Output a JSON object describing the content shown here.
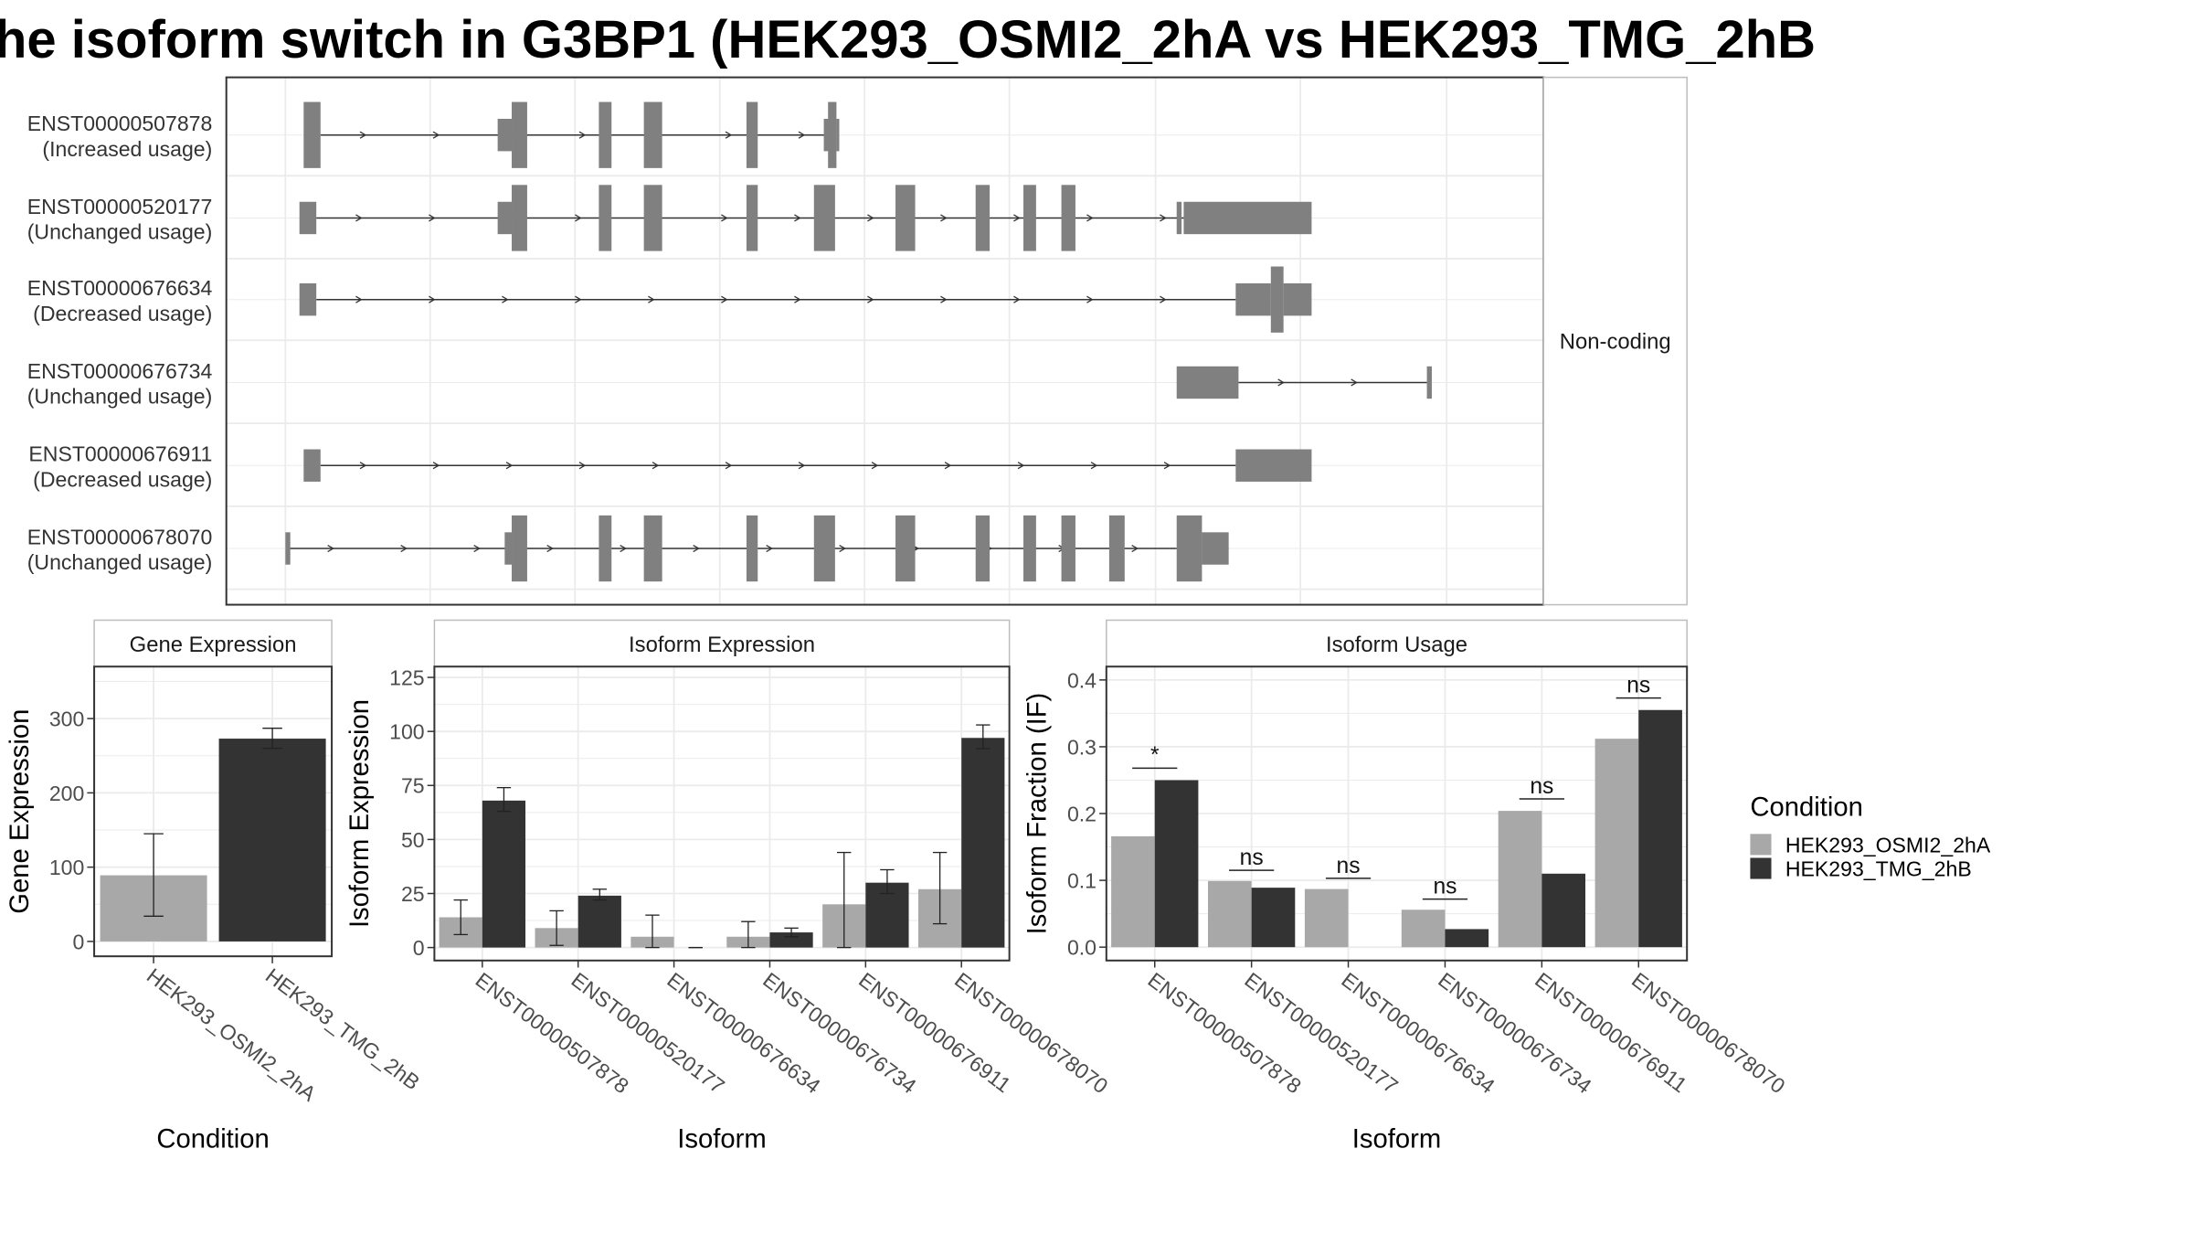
{
  "title": "he isoform switch in G3BP1 (HEK293_OSMI2_2hA vs HEK293_TMG_2hB",
  "colors": {
    "cond_a": "#a8a8a8",
    "cond_b": "#333333",
    "exon": "#808080",
    "grid": "#ebebeb",
    "panel_border": "#333333",
    "strip_border": "#bdbdbd"
  },
  "chart_data": [
    {
      "type": "gene-structure",
      "facet_label": "Non-coding",
      "transcripts": [
        {
          "id": "ENST00000507878",
          "usage": "(Increased usage)",
          "exons": [
            [
              25,
              37
            ],
            [
              173,
              184
            ],
            [
              235,
              244
            ],
            [
              267,
              280
            ],
            [
              340,
              348
            ],
            [
              398,
              404
            ]
          ],
          "utrs": [
            [
              163,
              173
            ],
            [
              404,
              406
            ]
          ],
          "ticks": [
            395
          ],
          "intron_from": 37,
          "intron_to": 398
        },
        {
          "id": "ENST00000520177",
          "usage": "(Unchanged usage)",
          "exons": [
            [
              173,
              184
            ],
            [
              235,
              244
            ],
            [
              267,
              280
            ],
            [
              340,
              348
            ],
            [
              388,
              403
            ],
            [
              446,
              460
            ],
            [
              503,
              513
            ],
            [
              537,
              546
            ],
            [
              564,
              574
            ]
          ],
          "utrs": [
            [
              22,
              34
            ],
            [
              163,
              173
            ],
            [
              651,
              742
            ]
          ],
          "ticks": [
            646
          ],
          "intron_from": 34,
          "intron_to": 651
        },
        {
          "id": "ENST00000676634",
          "usage": "(Decreased usage)",
          "exons": [
            [
              713,
              722
            ]
          ],
          "utrs": [
            [
              22,
              34
            ],
            [
              688,
              713
            ],
            [
              722,
              742
            ]
          ],
          "ticks": [],
          "intron_from": 34,
          "intron_to": 688
        },
        {
          "id": "ENST00000676734",
          "usage": "(Unchanged usage)",
          "exons": [],
          "utrs": [
            [
              646,
              690
            ]
          ],
          "ticks": [
            824
          ],
          "intron_from": 690,
          "intron_to": 824
        },
        {
          "id": "ENST00000676911",
          "usage": "(Decreased usage)",
          "exons": [],
          "utrs": [
            [
              25,
              37
            ],
            [
              688,
              742
            ]
          ],
          "ticks": [],
          "intron_from": 37,
          "intron_to": 688
        },
        {
          "id": "ENST00000678070",
          "usage": "(Unchanged usage)",
          "exons": [
            [
              173,
              184
            ],
            [
              235,
              244
            ],
            [
              267,
              280
            ],
            [
              340,
              348
            ],
            [
              388,
              403
            ],
            [
              446,
              460
            ],
            [
              503,
              513
            ],
            [
              537,
              546
            ],
            [
              564,
              574
            ],
            [
              598,
              609
            ],
            [
              646,
              664
            ]
          ],
          "utrs": [
            [
              168,
              173
            ],
            [
              664,
              683
            ]
          ],
          "ticks": [
            12
          ],
          "intron_from": 14,
          "intron_to": 646
        }
      ]
    },
    {
      "type": "bar",
      "strip": "Gene Expression",
      "ylabel": "Gene Expression",
      "xlabel": "Condition",
      "ylim": [
        -20,
        370
      ],
      "yticks": [
        0,
        100,
        200,
        300
      ],
      "categories": [
        "HEK293_OSMI2_2hA",
        "HEK293_TMG_2hB"
      ],
      "values": [
        89,
        273
      ],
      "err_low": [
        34,
        260
      ],
      "err_high": [
        145,
        287
      ]
    },
    {
      "type": "bar",
      "strip": "Isoform Expression",
      "ylabel": "Isoform Expression",
      "xlabel": "Isoform",
      "ylim": [
        -6,
        130
      ],
      "yticks": [
        0,
        25,
        50,
        75,
        100,
        125
      ],
      "categories": [
        "ENST00000507878",
        "ENST00000520177",
        "ENST00000676634",
        "ENST00000676734",
        "ENST00000676911",
        "ENST00000678070"
      ],
      "series": [
        {
          "name": "HEK293_OSMI2_2hA",
          "values": [
            14,
            9,
            5,
            5,
            20,
            27
          ],
          "err_low": [
            6,
            1,
            0,
            0,
            0,
            11
          ],
          "err_high": [
            22,
            17,
            15,
            12,
            44,
            44
          ]
        },
        {
          "name": "HEK293_TMG_2hB",
          "values": [
            68,
            24,
            0,
            7,
            30,
            97
          ],
          "err_low": [
            63,
            22,
            0,
            5,
            25,
            92
          ],
          "err_high": [
            74,
            27,
            0,
            9,
            36,
            103
          ]
        }
      ]
    },
    {
      "type": "bar",
      "strip": "Isoform Usage",
      "ylabel": "Isoform Fraction (IF)",
      "xlabel": "Isoform",
      "ylim": [
        -0.02,
        0.42
      ],
      "yticks": [
        0.0,
        0.1,
        0.2,
        0.3,
        0.4
      ],
      "ytick_labels": [
        "0.0",
        "0.1",
        "0.2",
        "0.3",
        "0.4"
      ],
      "categories": [
        "ENST00000507878",
        "ENST00000520177",
        "ENST00000676634",
        "ENST00000676734",
        "ENST00000676911",
        "ENST00000678070"
      ],
      "series": [
        {
          "name": "HEK293_OSMI2_2hA",
          "values": [
            0.166,
            0.099,
            0.087,
            0.056,
            0.204,
            0.312
          ]
        },
        {
          "name": "HEK293_TMG_2hB",
          "values": [
            0.25,
            0.089,
            0.0,
            0.027,
            0.11,
            0.355
          ]
        }
      ],
      "significance": [
        "*",
        "ns",
        "ns",
        "ns",
        "ns",
        "ns"
      ],
      "sig_line_y": [
        0.268,
        0.115,
        0.103,
        0.072,
        0.222,
        0.373
      ]
    }
  ],
  "legend": {
    "title": "Condition",
    "items": [
      "HEK293_OSMI2_2hA",
      "HEK293_TMG_2hB"
    ]
  }
}
